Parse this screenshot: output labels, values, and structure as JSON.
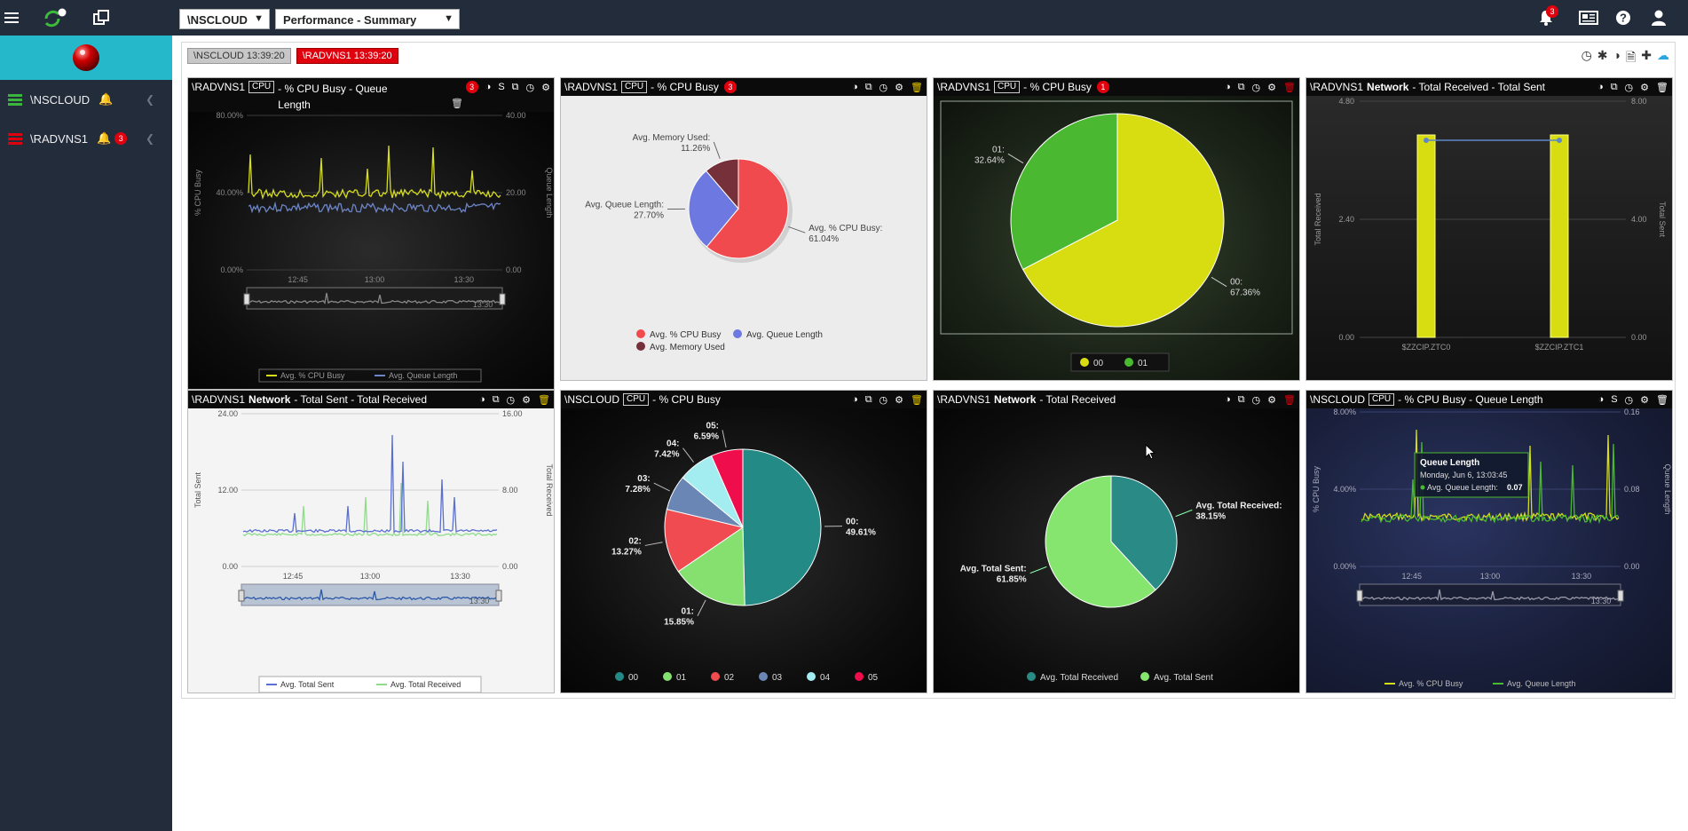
{
  "topbar": {
    "system_select": "\\NSCLOUD",
    "view_select": "Performance - Summary",
    "notifications_count": "3"
  },
  "sidebar": {
    "items": [
      {
        "label": "\\NSCLOUD",
        "badge": ""
      },
      {
        "label": "\\RADVNS1",
        "badge": "3"
      }
    ]
  },
  "tabs": [
    {
      "label": "\\NSCLOUD  13:39:20"
    },
    {
      "label": "\\RADVNS1  13:39:20"
    }
  ],
  "panels": [
    {
      "system": "\\RADVNS1",
      "tag": "CPU",
      "title": "- % CPU Busy - Queue Length",
      "badge": "3",
      "chart": {
        "type": "line",
        "y_left_label": "% CPU Busy",
        "y_right_label": "Queue Length",
        "y_left_ticks": [
          "80.00%",
          "40.00%",
          "0.00%"
        ],
        "y_right_ticks": [
          "40.00",
          "20.00",
          "0.00"
        ],
        "x_ticks": [
          "12:45",
          "13:00",
          "13:30"
        ],
        "nav_label": "13:30",
        "legend": [
          "Avg. % CPU Busy",
          "Avg. Queue Length"
        ]
      }
    },
    {
      "system": "\\RADVNS1",
      "tag": "CPU",
      "title": "- % CPU Busy",
      "badge": "3",
      "chart": {
        "type": "pie",
        "slices": [
          {
            "name": "Avg. % CPU Busy",
            "label": "Avg. % CPU Busy:",
            "pct": "61.04%",
            "value": 61.04,
            "color": "#f04a4f"
          },
          {
            "name": "Avg. Queue Length",
            "label": "Avg. Queue Length:",
            "pct": "27.70%",
            "value": 27.7,
            "color": "#6d78e0"
          },
          {
            "name": "Avg. Memory Used",
            "label": "Avg. Memory Used:",
            "pct": "11.26%",
            "value": 11.26,
            "color": "#76303a"
          }
        ]
      }
    },
    {
      "system": "\\RADVNS1",
      "tag": "CPU",
      "title": "- % CPU Busy",
      "badge": "1",
      "chart": {
        "type": "pie",
        "slices": [
          {
            "name": "00",
            "label": "00:",
            "pct": "67.36%",
            "value": 67.36,
            "color": "#d8dd12"
          },
          {
            "name": "01",
            "label": "01:",
            "pct": "32.64%",
            "value": 32.64,
            "color": "#4ab830"
          }
        ]
      }
    },
    {
      "system": "\\RADVNS1",
      "bold": "Network",
      "title": "- Total Received - Total Sent",
      "badge": "",
      "chart": {
        "type": "bar",
        "categories": [
          "$ZZCIP.ZTC0",
          "$ZZCIP.ZTC1"
        ],
        "y_left_label": "Total Received",
        "y_right_label": "Total Sent",
        "y_left_ticks": [
          "4.80",
          "2.40",
          "0.00"
        ],
        "y_right_ticks": [
          "8.00",
          "4.00",
          "0.00"
        ]
      }
    },
    {
      "system": "\\RADVNS1",
      "bold": "Network",
      "title": "- Total Sent - Total Received",
      "badge": "",
      "chart": {
        "type": "line",
        "y_left_label": "Total Sent",
        "y_right_label": "Total Received",
        "y_left_ticks": [
          "24.00",
          "12.00",
          "0.00"
        ],
        "y_right_ticks": [
          "16.00",
          "8.00",
          "0.00"
        ],
        "x_ticks": [
          "12:45",
          "13:00",
          "13:30"
        ],
        "nav_label": "13:30",
        "legend": [
          "Avg. Total Sent",
          "Avg. Total Received"
        ]
      }
    },
    {
      "system": "\\NSCLOUD",
      "tag": "CPU",
      "title": "- % CPU Busy",
      "badge": "",
      "chart": {
        "type": "pie",
        "slices": [
          {
            "name": "00",
            "label": "00:",
            "pct": "49.61%",
            "value": 49.61,
            "color": "#238a86"
          },
          {
            "name": "01",
            "label": "01:",
            "pct": "15.85%",
            "value": 15.85,
            "color": "#86e06f"
          },
          {
            "name": "02",
            "label": "02:",
            "pct": "13.27%",
            "value": 13.27,
            "color": "#ef4b50"
          },
          {
            "name": "03",
            "label": "03:",
            "pct": "7.28%",
            "value": 7.28,
            "color": "#6a86b5"
          },
          {
            "name": "04",
            "label": "04:",
            "pct": "7.42%",
            "value": 7.42,
            "color": "#a3ecf0"
          },
          {
            "name": "05",
            "label": "05:",
            "pct": "6.59%",
            "value": 6.59,
            "color": "#f00d4c"
          }
        ]
      }
    },
    {
      "system": "\\RADVNS1",
      "bold": "Network",
      "title": "- Total Received",
      "badge": "",
      "chart": {
        "type": "pie",
        "slices": [
          {
            "name": "Avg. Total Received",
            "label": "Avg. Total Received:",
            "pct": "38.15%",
            "value": 38.15,
            "color": "#2a8a86"
          },
          {
            "name": "Avg. Total Sent",
            "label": "Avg. Total Sent:",
            "pct": "61.85%",
            "value": 61.85,
            "color": "#86e56f"
          }
        ]
      }
    },
    {
      "system": "\\NSCLOUD",
      "tag": "CPU",
      "title": "- % CPU Busy - Queue Length",
      "badge": "",
      "chart": {
        "type": "line",
        "y_left_label": "% CPU Busy",
        "y_right_label": "Queue Length",
        "y_left_ticks": [
          "8.00%",
          "4.00%",
          "0.00%"
        ],
        "y_right_ticks": [
          "0.16",
          "0.08",
          "0.00"
        ],
        "x_ticks": [
          "12:45",
          "13:00",
          "13:30"
        ],
        "nav_label": "13:30",
        "legend": [
          "Avg. % CPU Busy",
          "Avg. Queue Length"
        ],
        "tooltip": {
          "title": "Queue Length",
          "date": "Monday, Jun 6, 13:03:45",
          "label": "Avg. Queue Length:",
          "value": "0.07"
        }
      }
    }
  ],
  "colors": {
    "accent": "#25b8cb",
    "alert": "#e0000d",
    "topbar": "#232c3a"
  }
}
